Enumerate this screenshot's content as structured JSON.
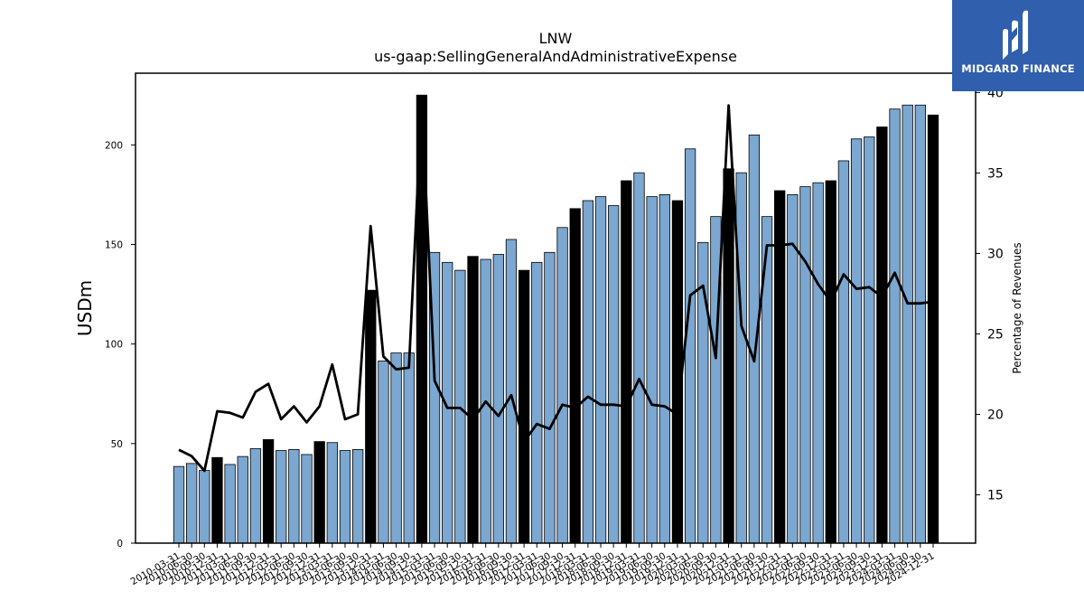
{
  "brand": {
    "name": "MIDGARD FINANCE"
  },
  "colors": {
    "bar": "#7ba7d0",
    "bar_highlight": "#000000",
    "line": "#000000"
  },
  "chart_data": {
    "type": "bar",
    "title": "LNW",
    "subtitle": "us-gaap:SellingGeneralAndAdministrativeExpense",
    "ylabel": "USDm",
    "y2label": "Percentage of Revenues",
    "ylim": [
      0,
      236
    ],
    "y2lim": [
      12,
      41.2
    ],
    "yticks": [
      0,
      50,
      100,
      150,
      200
    ],
    "y2ticks": [
      15,
      20,
      25,
      30,
      35,
      40
    ],
    "categories": [
      "2010-03-31",
      "2010-06-30",
      "2010-09-30",
      "2010-12-31",
      "2011-03-31",
      "2011-06-30",
      "2011-09-30",
      "2011-12-31",
      "2012-03-31",
      "2012-06-30",
      "2012-09-30",
      "2012-12-31",
      "2013-03-31",
      "2013-06-30",
      "2013-09-30",
      "2013-12-31",
      "2014-03-31",
      "2014-06-30",
      "2014-09-30",
      "2014-12-31",
      "2015-03-31",
      "2015-06-30",
      "2015-09-30",
      "2015-12-31",
      "2016-03-31",
      "2016-06-30",
      "2016-09-30",
      "2016-12-31",
      "2017-03-31",
      "2017-06-30",
      "2017-09-30",
      "2017-12-31",
      "2018-03-31",
      "2018-06-30",
      "2018-09-30",
      "2018-12-31",
      "2019-03-31",
      "2019-06-30",
      "2019-09-30",
      "2019-12-31",
      "2020-03-31",
      "2020-06-30",
      "2020-09-30",
      "2020-12-31",
      "2021-03-31",
      "2021-06-30",
      "2021-09-30",
      "2021-12-31",
      "2022-03-31",
      "2022-06-30",
      "2022-09-30",
      "2022-12-31",
      "2023-03-31",
      "2023-06-30",
      "2023-09-30",
      "2023-12-31",
      "2024-03-31",
      "2024-06-30",
      "2024-09-30",
      "2024-12-31"
    ],
    "series": [
      {
        "values": [
          38.5,
          40,
          36.5,
          43,
          39.5,
          43.5,
          47.5,
          52,
          46.5,
          47,
          44.5,
          51,
          50.5,
          46.5,
          47,
          127,
          91.5,
          95.5,
          95.5,
          225,
          146,
          141,
          137,
          144,
          142.5,
          145,
          152.5,
          137,
          141,
          146,
          158.5,
          168,
          172,
          174,
          169.5,
          182,
          186,
          174,
          175,
          172,
          198,
          151,
          164,
          188,
          186,
          205,
          164,
          177,
          175,
          179,
          181,
          182,
          192,
          203,
          204,
          209,
          218,
          220,
          220,
          215
        ]
      },
      {
        "values": [
          17.8,
          17.4,
          16.5,
          20.2,
          20.1,
          19.8,
          21.4,
          21.9,
          19.7,
          20.5,
          19.5,
          20.5,
          23.1,
          19.7,
          20,
          31.7,
          23.6,
          22.8,
          22.9,
          39.5,
          22.1,
          20.4,
          20.4,
          19.7,
          20.8,
          19.9,
          21.2,
          18.3,
          19.4,
          19.1,
          20.6,
          20.4,
          21.1,
          20.6,
          20.6,
          20.5,
          22.2,
          20.6,
          20.5,
          20,
          27.4,
          28,
          23.5,
          39.2,
          25.5,
          23.3,
          30.5,
          30.5,
          30.6,
          29.5,
          28.1,
          27,
          28.7,
          27.8,
          27.9,
          27.3,
          28.8,
          26.9,
          26.9,
          27
        ]
      }
    ]
  }
}
